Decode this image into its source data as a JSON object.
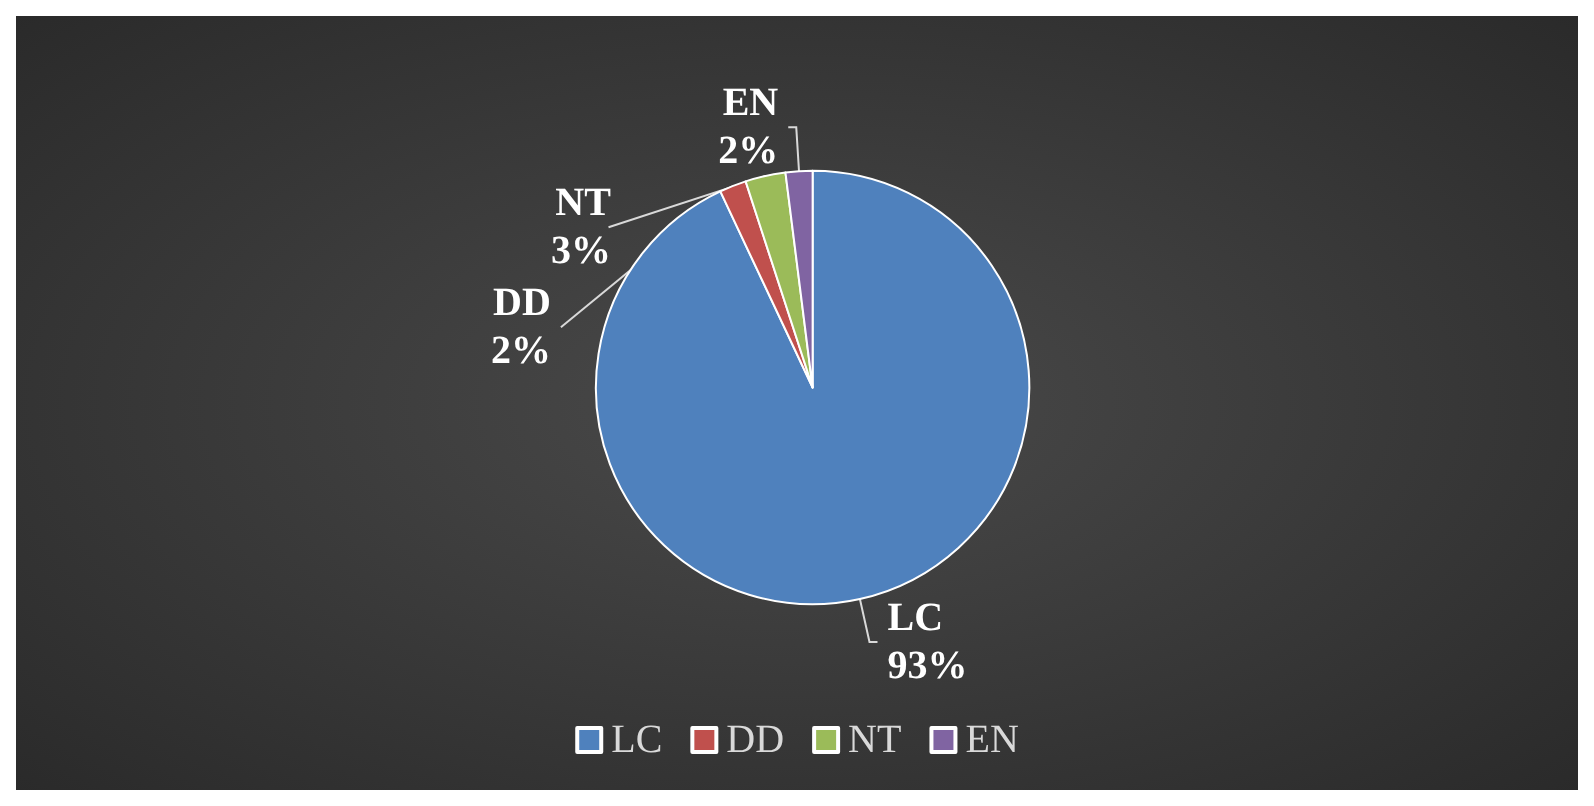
{
  "chart_data": {
    "type": "pie",
    "categories": [
      "LC",
      "DD",
      "NT",
      "EN"
    ],
    "values": [
      93,
      2,
      3,
      2
    ],
    "value_labels": [
      "93%",
      "2%",
      "3%",
      "2%"
    ],
    "colors": [
      "#4f81bd",
      "#c0504d",
      "#9bbb59",
      "#8064a2"
    ],
    "legend": "bottom"
  }
}
